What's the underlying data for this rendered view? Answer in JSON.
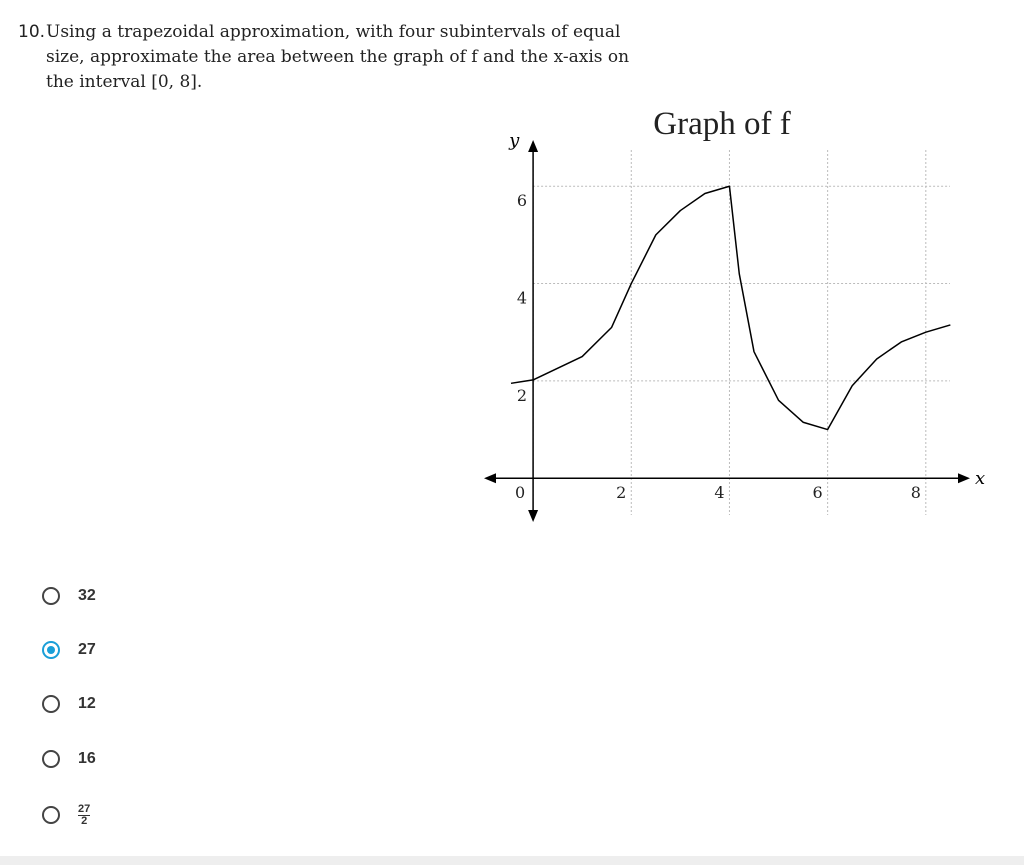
{
  "question": {
    "number": "10.",
    "text": "Using a trapezoidal approximation, with four subintervals of equal size, approximate the area between the graph of f and the x-axis on the interval [0, 8]."
  },
  "chart_data": {
    "type": "line",
    "title": "Graph of f",
    "x_label": "x",
    "y_label": "y",
    "x": [
      -0.45,
      0,
      1,
      1.6,
      2,
      2.5,
      3,
      3.5,
      4,
      4.2,
      4.5,
      5,
      5.5,
      6,
      6.5,
      7,
      7.5,
      8,
      8.5
    ],
    "y": [
      1.95,
      2.02,
      2.5,
      3.1,
      4,
      5.0,
      5.5,
      5.85,
      6.0,
      4.2,
      2.6,
      1.6,
      1.15,
      1.0,
      1.9,
      2.45,
      2.8,
      3.0,
      3.15
    ],
    "color": "#000000",
    "xlim": [
      -1,
      8.9
    ],
    "ylim": [
      -0.9,
      6.95
    ],
    "xticks": [
      0,
      2,
      4,
      6,
      8
    ],
    "yticks": [
      2,
      4,
      6
    ],
    "grid": true
  },
  "options": [
    {
      "text": "32"
    },
    {
      "text": "27"
    },
    {
      "text": "12"
    },
    {
      "text": "16"
    },
    {
      "numerator": "27",
      "denominator": "2"
    }
  ],
  "selected": 1
}
